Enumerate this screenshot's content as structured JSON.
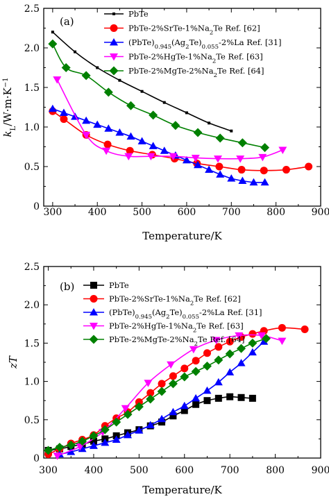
{
  "chart_data": [
    {
      "type": "line",
      "panel_label": "(a)",
      "xlabel": "Temperature/K",
      "ylabel": "k_L/W·m·K⁻¹",
      "xlim": [
        280,
        900
      ],
      "ylim": [
        0,
        2.5
      ],
      "xticks": [
        300,
        400,
        500,
        600,
        700,
        800,
        900
      ],
      "yticks": [
        0,
        0.5,
        1.0,
        1.5,
        2.0,
        2.5
      ],
      "ytick_labels": [
        "0",
        "0.5",
        "1.0",
        "1.5",
        "2.0",
        "2.5"
      ],
      "legend_position": "top-right",
      "series": [
        {
          "name": "PbTe",
          "color": "#000000",
          "marker": "square-small",
          "x": [
            300,
            350,
            400,
            450,
            500,
            550,
            600,
            650,
            700
          ],
          "y": [
            2.2,
            1.95,
            1.75,
            1.59,
            1.45,
            1.31,
            1.18,
            1.05,
            0.95
          ]
        },
        {
          "name": "PbTe-2%SrTe-1%Na2Te Ref. [62]",
          "color": "#ff0000",
          "marker": "circle",
          "x": [
            300,
            325,
            375,
            423,
            473,
            523,
            573,
            623,
            673,
            723,
            773,
            823,
            873
          ],
          "y": [
            1.2,
            1.1,
            0.9,
            0.78,
            0.7,
            0.65,
            0.6,
            0.54,
            0.5,
            0.46,
            0.45,
            0.46,
            0.5
          ]
        },
        {
          "name": "(PbTe)0.945(Ag2Te)0.055-2%La Ref. [31]",
          "color": "#0000ff",
          "marker": "triangle-up",
          "x": [
            300,
            325,
            350,
            375,
            400,
            425,
            450,
            475,
            500,
            525,
            550,
            575,
            600,
            625,
            650,
            675,
            700,
            725,
            750,
            775
          ],
          "y": [
            1.23,
            1.18,
            1.13,
            1.08,
            1.03,
            0.98,
            0.93,
            0.88,
            0.82,
            0.76,
            0.7,
            0.64,
            0.58,
            0.52,
            0.46,
            0.4,
            0.35,
            0.32,
            0.3,
            0.3
          ]
        },
        {
          "name": "PbTe-2%HgTe-1%Na2Te Ref. [63]",
          "color": "#ff00ff",
          "marker": "triangle-down",
          "x": [
            310,
            375,
            420,
            470,
            520,
            570,
            620,
            670,
            720,
            770,
            815
          ],
          "y": [
            1.6,
            0.9,
            0.7,
            0.63,
            0.63,
            0.63,
            0.61,
            0.6,
            0.6,
            0.62,
            0.71
          ]
        },
        {
          "name": "PbTe-2%MgTe-2%Na2Te Ref. [64]",
          "color": "#008000",
          "marker": "diamond",
          "x": [
            300,
            330,
            375,
            425,
            475,
            525,
            575,
            625,
            675,
            725,
            775
          ],
          "y": [
            2.05,
            1.75,
            1.65,
            1.44,
            1.27,
            1.15,
            1.02,
            0.93,
            0.86,
            0.8,
            0.74
          ]
        }
      ]
    },
    {
      "type": "line",
      "panel_label": "(b)",
      "xlabel": "Temperature/K",
      "ylabel": "zT",
      "xlim": [
        290,
        900
      ],
      "ylim": [
        0,
        2.5
      ],
      "xticks": [
        300,
        400,
        500,
        600,
        700,
        800,
        900
      ],
      "yticks": [
        0,
        0.5,
        1.0,
        1.5,
        2.0,
        2.5
      ],
      "ytick_labels": [
        "0",
        "0.5",
        "1.0",
        "1.5",
        "2.0",
        "2.5"
      ],
      "legend_position": "top-right",
      "series": [
        {
          "name": "PbTe",
          "color": "#000000",
          "marker": "square",
          "x": [
            300,
            325,
            350,
            375,
            400,
            425,
            450,
            475,
            500,
            525,
            550,
            575,
            600,
            625,
            650,
            675,
            700,
            725,
            750
          ],
          "y": [
            0.1,
            0.12,
            0.15,
            0.18,
            0.22,
            0.25,
            0.29,
            0.33,
            0.37,
            0.42,
            0.47,
            0.55,
            0.62,
            0.7,
            0.75,
            0.78,
            0.8,
            0.79,
            0.78
          ]
        },
        {
          "name": "PbTe-2%SrTe-1%Na2Te Ref. [62]",
          "color": "#ff0000",
          "marker": "circle",
          "x": [
            300,
            325,
            350,
            375,
            400,
            425,
            450,
            475,
            500,
            525,
            550,
            575,
            600,
            625,
            650,
            675,
            700,
            725,
            750,
            775,
            815,
            865
          ],
          "y": [
            0.05,
            0.12,
            0.19,
            0.24,
            0.3,
            0.42,
            0.52,
            0.6,
            0.73,
            0.85,
            0.97,
            1.07,
            1.17,
            1.27,
            1.37,
            1.45,
            1.52,
            1.58,
            1.62,
            1.66,
            1.7,
            1.68
          ]
        },
        {
          "name": "(PbTe)0.945(Ag2Te)0.055-2%La Ref. [31]",
          "color": "#0000ff",
          "marker": "triangle-up",
          "x": [
            325,
            350,
            375,
            400,
            425,
            450,
            475,
            500,
            525,
            550,
            575,
            600,
            625,
            650,
            675,
            700,
            725,
            750,
            775
          ],
          "y": [
            0.05,
            0.08,
            0.12,
            0.16,
            0.2,
            0.24,
            0.3,
            0.36,
            0.43,
            0.51,
            0.6,
            0.68,
            0.78,
            0.88,
            0.99,
            1.12,
            1.24,
            1.38,
            1.52
          ]
        },
        {
          "name": "PbTe-2%HgTe-1%Na2Te Ref. [63]",
          "color": "#ff00ff",
          "marker": "triangle-down",
          "x": [
            320,
            370,
            420,
            470,
            520,
            570,
            620,
            670,
            720,
            770,
            815
          ],
          "y": [
            0.03,
            0.15,
            0.34,
            0.65,
            0.98,
            1.22,
            1.42,
            1.54,
            1.6,
            1.6,
            1.53
          ]
        },
        {
          "name": "PbTe-2%MgTe-2%Na2Te Ref. [64]",
          "color": "#008000",
          "marker": "diamond",
          "x": [
            300,
            325,
            350,
            375,
            400,
            425,
            450,
            475,
            500,
            525,
            550,
            575,
            600,
            625,
            650,
            675,
            700,
            725,
            750,
            780
          ],
          "y": [
            0.1,
            0.14,
            0.17,
            0.22,
            0.29,
            0.37,
            0.47,
            0.57,
            0.67,
            0.77,
            0.87,
            0.97,
            1.06,
            1.13,
            1.2,
            1.28,
            1.36,
            1.43,
            1.5,
            1.56
          ]
        }
      ]
    }
  ]
}
